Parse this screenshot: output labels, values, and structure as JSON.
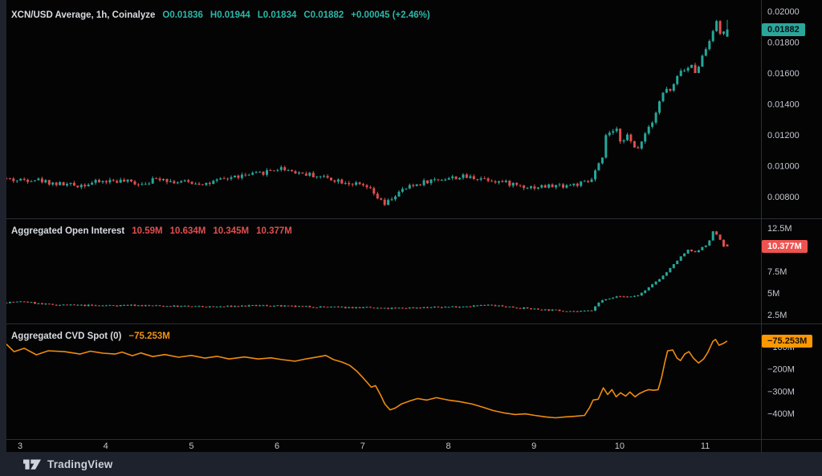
{
  "footer": {
    "brand": "TradingView"
  },
  "axis": {
    "time_labels": [
      "3",
      "4",
      "5",
      "6",
      "7",
      "8",
      "9",
      "10",
      "11"
    ]
  },
  "chart_data": [
    {
      "id": "price",
      "type": "candlestick",
      "title": "XCN/USD Average, 1h, Coinalyze",
      "legend_values": [
        "O0.01836",
        "H0.01944",
        "L0.01834",
        "C0.01882",
        "+0.00045 (+2.46%)"
      ],
      "badge": "0.01882",
      "badge_value": 0.01882,
      "last_candle": {
        "open": 0.01836,
        "high": 0.01944,
        "low": 0.01834,
        "close": 0.01882
      },
      "y_ticks": [
        {
          "v": 0.02,
          "t": "0.02000"
        },
        {
          "v": 0.018,
          "t": "0.01800"
        },
        {
          "v": 0.016,
          "t": "0.01600"
        },
        {
          "v": 0.014,
          "t": "0.01400"
        },
        {
          "v": 0.012,
          "t": "0.01200"
        },
        {
          "v": 0.01,
          "t": "0.01000"
        },
        {
          "v": 0.008,
          "t": "0.00800"
        }
      ],
      "x_tick_days": [
        3,
        4,
        5,
        6,
        7,
        8,
        9,
        10,
        11
      ],
      "candle_interval_days": 0.0416667,
      "noise": 0.00016,
      "seed": 42,
      "colors": {
        "up": "#26a69a",
        "down": "#e14d4d"
      },
      "waypoints": [
        [
          2.84,
          0.0092
        ],
        [
          3.0,
          0.00905
        ],
        [
          3.2,
          0.00915
        ],
        [
          3.45,
          0.00885
        ],
        [
          3.7,
          0.00872
        ],
        [
          3.95,
          0.00895
        ],
        [
          4.15,
          0.00905
        ],
        [
          4.45,
          0.00885
        ],
        [
          4.7,
          0.00925
        ],
        [
          4.8,
          0.00898
        ],
        [
          5.0,
          0.00893
        ],
        [
          5.25,
          0.00885
        ],
        [
          5.5,
          0.00925
        ],
        [
          5.8,
          0.00945
        ],
        [
          6.0,
          0.00975
        ],
        [
          6.1,
          0.00985
        ],
        [
          6.3,
          0.00955
        ],
        [
          6.6,
          0.00925
        ],
        [
          6.9,
          0.00888
        ],
        [
          7.1,
          0.00858
        ],
        [
          7.2,
          0.008
        ],
        [
          7.3,
          0.00745
        ],
        [
          7.4,
          0.008
        ],
        [
          7.55,
          0.00855
        ],
        [
          7.75,
          0.00895
        ],
        [
          7.95,
          0.00915
        ],
        [
          8.2,
          0.00928
        ],
        [
          8.45,
          0.0092
        ],
        [
          8.7,
          0.0089
        ],
        [
          9.0,
          0.00862
        ],
        [
          9.25,
          0.00868
        ],
        [
          9.55,
          0.0088
        ],
        [
          9.7,
          0.00895
        ],
        [
          9.78,
          0.0099
        ],
        [
          9.84,
          0.0104
        ],
        [
          9.89,
          0.0123
        ],
        [
          9.95,
          0.01195
        ],
        [
          10.0,
          0.0124
        ],
        [
          10.06,
          0.0115
        ],
        [
          10.12,
          0.0121
        ],
        [
          10.18,
          0.0114
        ],
        [
          10.24,
          0.01095
        ],
        [
          10.3,
          0.0117
        ],
        [
          10.36,
          0.01235
        ],
        [
          10.44,
          0.0131
        ],
        [
          10.52,
          0.0144
        ],
        [
          10.58,
          0.015
        ],
        [
          10.64,
          0.0148
        ],
        [
          10.7,
          0.0155
        ],
        [
          10.76,
          0.0163
        ],
        [
          10.82,
          0.016
        ],
        [
          10.87,
          0.0168
        ],
        [
          10.9,
          0.0159
        ],
        [
          10.96,
          0.0165
        ],
        [
          11.02,
          0.0172
        ],
        [
          11.08,
          0.018
        ],
        [
          11.14,
          0.019
        ],
        [
          11.18,
          0.0193
        ],
        [
          11.22,
          0.0184
        ],
        [
          11.26,
          0.01882
        ]
      ]
    },
    {
      "id": "open_interest",
      "type": "candlestick",
      "title": "Aggregated Open Interest",
      "legend_values": [
        "10.59M",
        "10.634M",
        "10.345M",
        "10.377M"
      ],
      "badge": "10.377M",
      "badge_value": 10.377,
      "last_candle": {
        "open": 10.59,
        "high": 10.634,
        "low": 10.345,
        "close": 10.377
      },
      "y_ticks": [
        {
          "v": 12.5,
          "t": "12.5M"
        },
        {
          "v": 7.5,
          "t": "7.5M"
        },
        {
          "v": 5,
          "t": "5M"
        },
        {
          "v": 2.5,
          "t": "2.5M"
        }
      ],
      "candle_interval_days": 0.0416667,
      "noise": 0.09,
      "seed": 7,
      "colors": {
        "up": "#26a69a",
        "down": "#e14d4d"
      },
      "waypoints": [
        [
          2.84,
          3.9
        ],
        [
          3.1,
          4.0
        ],
        [
          3.3,
          3.7
        ],
        [
          3.6,
          3.6
        ],
        [
          4.0,
          3.55
        ],
        [
          4.3,
          3.6
        ],
        [
          4.7,
          3.5
        ],
        [
          5.0,
          3.45
        ],
        [
          5.3,
          3.4
        ],
        [
          5.65,
          3.5
        ],
        [
          5.9,
          3.55
        ],
        [
          6.2,
          3.45
        ],
        [
          6.5,
          3.4
        ],
        [
          6.8,
          3.35
        ],
        [
          7.1,
          3.3
        ],
        [
          7.3,
          3.2
        ],
        [
          7.6,
          3.3
        ],
        [
          7.9,
          3.35
        ],
        [
          8.2,
          3.45
        ],
        [
          8.5,
          3.6
        ],
        [
          8.8,
          3.35
        ],
        [
          9.1,
          3.1
        ],
        [
          9.4,
          2.95
        ],
        [
          9.6,
          2.85
        ],
        [
          9.72,
          3.0
        ],
        [
          9.8,
          3.9
        ],
        [
          9.88,
          4.35
        ],
        [
          9.95,
          4.5
        ],
        [
          10.05,
          4.6
        ],
        [
          10.15,
          4.55
        ],
        [
          10.25,
          4.7
        ],
        [
          10.35,
          5.3
        ],
        [
          10.45,
          6.2
        ],
        [
          10.55,
          7.0
        ],
        [
          10.65,
          8.0
        ],
        [
          10.72,
          8.8
        ],
        [
          10.78,
          9.4
        ],
        [
          10.85,
          10.0
        ],
        [
          10.92,
          9.6
        ],
        [
          11.0,
          10.3
        ],
        [
          11.08,
          10.7
        ],
        [
          11.14,
          12.35
        ],
        [
          11.2,
          11.3
        ],
        [
          11.26,
          10.377
        ]
      ]
    },
    {
      "id": "cvd_spot",
      "type": "line",
      "title": "Aggregated CVD Spot (0)",
      "legend_values": [
        "−75.253M"
      ],
      "badge": "−75.253M",
      "badge_value": -75.253,
      "line_color": "#ef8b0e",
      "y_ticks": [
        {
          "v": -100,
          "t": "−100M"
        },
        {
          "v": -200,
          "t": "−200M"
        },
        {
          "v": -300,
          "t": "−300M"
        },
        {
          "v": -400,
          "t": "−400M"
        }
      ],
      "points": [
        [
          2.84,
          -88
        ],
        [
          2.93,
          -122
        ],
        [
          3.05,
          -107
        ],
        [
          3.19,
          -136
        ],
        [
          3.33,
          -118
        ],
        [
          3.52,
          -122
        ],
        [
          3.7,
          -133
        ],
        [
          3.82,
          -120
        ],
        [
          3.97,
          -129
        ],
        [
          4.11,
          -133
        ],
        [
          4.19,
          -124
        ],
        [
          4.31,
          -140
        ],
        [
          4.41,
          -128
        ],
        [
          4.55,
          -144
        ],
        [
          4.69,
          -135
        ],
        [
          4.85,
          -147
        ],
        [
          5.0,
          -139
        ],
        [
          5.16,
          -151
        ],
        [
          5.3,
          -143
        ],
        [
          5.44,
          -155
        ],
        [
          5.62,
          -146
        ],
        [
          5.78,
          -155
        ],
        [
          5.93,
          -150
        ],
        [
          6.06,
          -158
        ],
        [
          6.21,
          -165
        ],
        [
          6.35,
          -154
        ],
        [
          6.5,
          -144
        ],
        [
          6.57,
          -139
        ],
        [
          6.66,
          -158
        ],
        [
          6.76,
          -169
        ],
        [
          6.85,
          -184
        ],
        [
          6.93,
          -209
        ],
        [
          7.0,
          -238
        ],
        [
          7.06,
          -264
        ],
        [
          7.1,
          -282
        ],
        [
          7.15,
          -275
        ],
        [
          7.21,
          -318
        ],
        [
          7.26,
          -358
        ],
        [
          7.32,
          -384
        ],
        [
          7.38,
          -376
        ],
        [
          7.45,
          -358
        ],
        [
          7.55,
          -344
        ],
        [
          7.64,
          -333
        ],
        [
          7.75,
          -340
        ],
        [
          7.86,
          -329
        ],
        [
          8.0,
          -340
        ],
        [
          8.13,
          -347
        ],
        [
          8.28,
          -358
        ],
        [
          8.41,
          -373
        ],
        [
          8.52,
          -387
        ],
        [
          8.65,
          -398
        ],
        [
          8.78,
          -405
        ],
        [
          8.9,
          -402
        ],
        [
          9.01,
          -409
        ],
        [
          9.14,
          -416
        ],
        [
          9.25,
          -420
        ],
        [
          9.36,
          -416
        ],
        [
          9.48,
          -413
        ],
        [
          9.59,
          -409
        ],
        [
          9.65,
          -373
        ],
        [
          9.69,
          -340
        ],
        [
          9.75,
          -336
        ],
        [
          9.81,
          -285
        ],
        [
          9.86,
          -315
        ],
        [
          9.91,
          -293
        ],
        [
          9.96,
          -325
        ],
        [
          10.01,
          -307
        ],
        [
          10.07,
          -322
        ],
        [
          10.12,
          -304
        ],
        [
          10.18,
          -325
        ],
        [
          10.23,
          -311
        ],
        [
          10.29,
          -300
        ],
        [
          10.34,
          -293
        ],
        [
          10.4,
          -296
        ],
        [
          10.45,
          -293
        ],
        [
          10.49,
          -238
        ],
        [
          10.53,
          -165
        ],
        [
          10.56,
          -118
        ],
        [
          10.62,
          -115
        ],
        [
          10.67,
          -151
        ],
        [
          10.71,
          -162
        ],
        [
          10.76,
          -133
        ],
        [
          10.81,
          -122
        ],
        [
          10.86,
          -151
        ],
        [
          10.92,
          -173
        ],
        [
          10.98,
          -155
        ],
        [
          11.03,
          -125
        ],
        [
          11.09,
          -75
        ],
        [
          11.12,
          -67
        ],
        [
          11.16,
          -93
        ],
        [
          11.21,
          -85
        ],
        [
          11.25,
          -75.253
        ]
      ]
    }
  ]
}
